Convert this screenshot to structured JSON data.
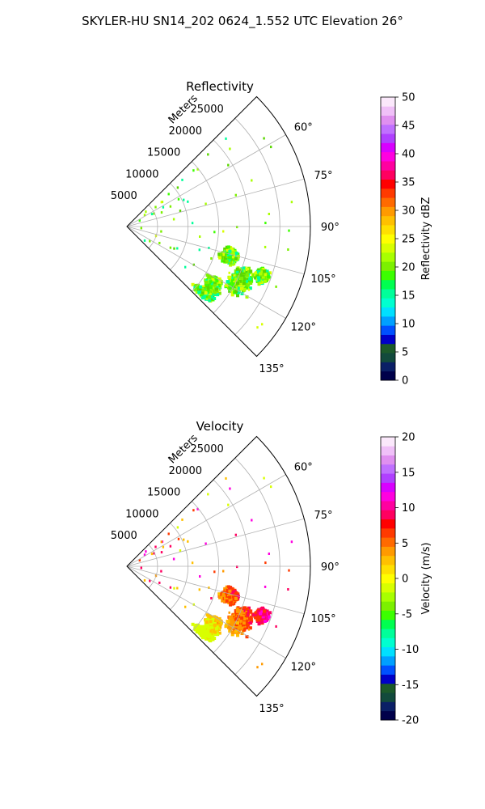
{
  "title": "SKYLER-HU  SN14_202  0624_1.552 UTC Elevation 26°",
  "chart_data": [
    {
      "type": "heatmap",
      "projection": "polar-sector",
      "title": "Reflectivity",
      "radial_label": "Meters",
      "radial_ticks": [
        "5000",
        "10000",
        "15000",
        "20000",
        "25000"
      ],
      "radial_tick_values": [
        5000,
        10000,
        15000,
        20000,
        25000
      ],
      "radial_max": 30000,
      "azimuth_range": [
        45,
        135
      ],
      "azimuth_tick_values": [
        60,
        75,
        90,
        105,
        120,
        135
      ],
      "azimuth_ticks": [
        "60°",
        "75°",
        "90°",
        "105°",
        "120°",
        "135°"
      ],
      "grid": true,
      "colorbar": {
        "label": "Reflectivity dBZ",
        "ticks": [
          "0",
          "5",
          "10",
          "15",
          "20",
          "25",
          "30",
          "35",
          "40",
          "45",
          "50"
        ],
        "range": [
          0,
          50
        ],
        "colors": [
          "#00004a",
          "#0a1f66",
          "#124a3c",
          "#1c5a2a",
          "#0000c8",
          "#0050ff",
          "#00a0ff",
          "#00e0ff",
          "#00ffd0",
          "#00ff9a",
          "#00ff50",
          "#3cff00",
          "#7cf000",
          "#a8ff00",
          "#d8ff00",
          "#ffff00",
          "#ffe000",
          "#ffc000",
          "#ff9a00",
          "#ff6a00",
          "#ff3a00",
          "#ff0000",
          "#ff0060",
          "#ff00a0",
          "#ff00e0",
          "#d800ff",
          "#b040ff",
          "#c070ff",
          "#e090f0",
          "#f0c0f8",
          "#fbe8fb"
        ]
      },
      "echo_colors": [
        "#a8ff00",
        "#7cf000",
        "#3cff00",
        "#d8ff00",
        "#00ff9a",
        "#5ad600"
      ],
      "cores": [
        {
          "az": 116,
          "r": 20500,
          "spread_az": 9,
          "spread_r": 2600
        },
        {
          "az": 106,
          "r": 17500,
          "spread_az": 6,
          "spread_r": 2000
        },
        {
          "az": 124,
          "r": 17000,
          "spread_az": 6,
          "spread_r": 2000
        },
        {
          "az": 110,
          "r": 23500,
          "spread_az": 4,
          "spread_r": 1500
        },
        {
          "az": 131,
          "r": 16500,
          "spread_az": 3,
          "spread_r": 2600
        }
      ]
    },
    {
      "type": "heatmap",
      "projection": "polar-sector",
      "title": "Velocity",
      "radial_label": "Meters",
      "radial_ticks": [
        "5000",
        "10000",
        "15000",
        "20000",
        "25000"
      ],
      "radial_tick_values": [
        5000,
        10000,
        15000,
        20000,
        25000
      ],
      "radial_max": 30000,
      "azimuth_range": [
        45,
        135
      ],
      "azimuth_tick_values": [
        60,
        75,
        90,
        105,
        120,
        135
      ],
      "azimuth_ticks": [
        "60°",
        "75°",
        "90°",
        "105°",
        "120°",
        "135°"
      ],
      "grid": true,
      "colorbar": {
        "label": "Velocity (m/s)",
        "ticks": [
          "-20",
          "-15",
          "-10",
          "-5",
          "0",
          "5",
          "10",
          "15",
          "20"
        ],
        "range": [
          -20,
          20
        ],
        "colors": [
          "#00004a",
          "#0a1f66",
          "#124a3c",
          "#1c5a2a",
          "#0000c8",
          "#0050ff",
          "#00a0ff",
          "#00e0ff",
          "#00ffd0",
          "#00ff9a",
          "#00ff50",
          "#3cff00",
          "#7cf000",
          "#a8ff00",
          "#d8ff00",
          "#ffff00",
          "#ffe000",
          "#ffc000",
          "#ff9a00",
          "#ff6a00",
          "#ff3a00",
          "#ff0000",
          "#ff0060",
          "#ff00a0",
          "#ff00e0",
          "#d800ff",
          "#b040ff",
          "#c070ff",
          "#e090f0",
          "#f0c0f8",
          "#fbe8fb"
        ]
      },
      "echo_colors": [
        "#ff00e0",
        "#ff0060",
        "#ff3a00",
        "#ff9a00",
        "#ffc000",
        "#d8ff00"
      ],
      "cores": [
        {
          "az": 116,
          "r": 20500,
          "spread_az": 9,
          "spread_r": 2600
        },
        {
          "az": 106,
          "r": 17500,
          "spread_az": 6,
          "spread_r": 2000
        },
        {
          "az": 124,
          "r": 17000,
          "spread_az": 6,
          "spread_r": 2000
        },
        {
          "az": 110,
          "r": 23500,
          "spread_az": 4,
          "spread_r": 1500
        },
        {
          "az": 131,
          "r": 16500,
          "spread_az": 3,
          "spread_r": 2600
        }
      ]
    }
  ]
}
